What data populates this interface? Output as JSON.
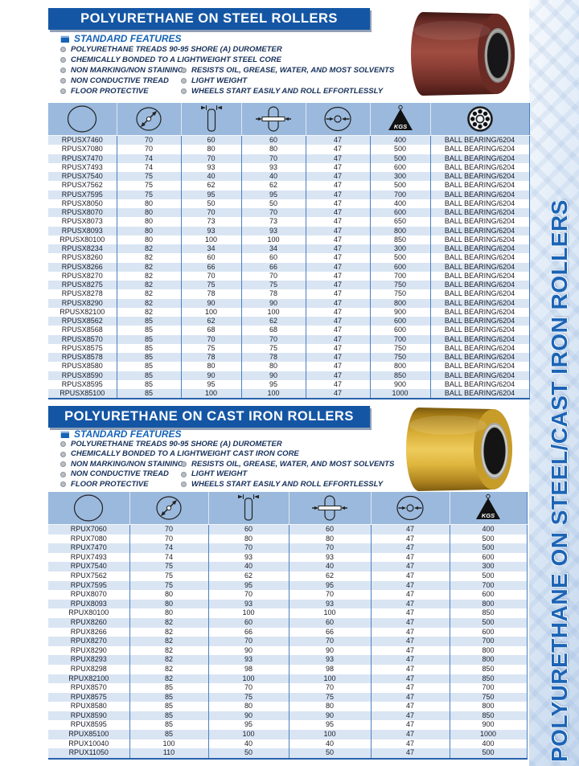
{
  "sidebar": {
    "vertical_title": "POLYURETHANE ON STEEL/CAST IRON ROLLERS"
  },
  "kgs_label": "KGS",
  "column_icons": [
    "part-number",
    "wheel-diameter",
    "tread-width",
    "hub-length",
    "bore-diameter",
    "load-capacity-kgs",
    "bearing-type"
  ],
  "sections": [
    {
      "banner": "POLYURETHANE ON STEEL ROLLERS",
      "features_title": "STANDARD FEATURES",
      "features_full": [
        "POLYURETHANE TREADS 90-95 SHORE (A) DUROMETER",
        "CHEMICALLY BONDED TO A LIGHTWEIGHT STEEL CORE"
      ],
      "features_left": [
        "NON MARKING/NON STAINING",
        "NON CONDUCTIVE TREAD",
        "FLOOR PROTECTIVE"
      ],
      "features_right": [
        "RESISTS OIL, GREASE, WATER, AND MOST SOLVENTS",
        "LIGHT WEIGHT",
        "WHEELS START EASILY AND ROLL EFFORTLESSLY"
      ],
      "product_image": "maroon-polyurethane-roller-steel-core",
      "rows": [
        [
          "RPUSX7460",
          "70",
          "60",
          "60",
          "47",
          "400",
          "BALL BEARING/6204"
        ],
        [
          "RPUSX7080",
          "70",
          "80",
          "80",
          "47",
          "500",
          "BALL BEARING/6204"
        ],
        [
          "RPUSX7470",
          "74",
          "70",
          "70",
          "47",
          "500",
          "BALL BEARING/6204"
        ],
        [
          "RPUSX7493",
          "74",
          "93",
          "93",
          "47",
          "600",
          "BALL BEARING/6204"
        ],
        [
          "RPUSX7540",
          "75",
          "40",
          "40",
          "47",
          "300",
          "BALL BEARING/6204"
        ],
        [
          "RPUSX7562",
          "75",
          "62",
          "62",
          "47",
          "500",
          "BALL BEARING/6204"
        ],
        [
          "RPUSX7595",
          "75",
          "95",
          "95",
          "47",
          "700",
          "BALL BEARING/6204"
        ],
        [
          "RPUSX8050",
          "80",
          "50",
          "50",
          "47",
          "400",
          "BALL BEARING/6204"
        ],
        [
          "RPUSX8070",
          "80",
          "70",
          "70",
          "47",
          "600",
          "BALL BEARING/6204"
        ],
        [
          "RPUSX8073",
          "80",
          "73",
          "73",
          "47",
          "650",
          "BALL BEARING/6204"
        ],
        [
          "RPUSX8093",
          "80",
          "93",
          "93",
          "47",
          "800",
          "BALL BEARING/6204"
        ],
        [
          "RPUSX80100",
          "80",
          "100",
          "100",
          "47",
          "850",
          "BALL BEARING/6204"
        ],
        [
          "RPUSX8234",
          "82",
          "34",
          "34",
          "47",
          "300",
          "BALL BEARING/6204"
        ],
        [
          "RPUSX8260",
          "82",
          "60",
          "60",
          "47",
          "500",
          "BALL BEARING/6204"
        ],
        [
          "RPUSX8266",
          "82",
          "66",
          "66",
          "47",
          "600",
          "BALL BEARING/6204"
        ],
        [
          "RPUSX8270",
          "82",
          "70",
          "70",
          "47",
          "700",
          "BALL BEARING/6204"
        ],
        [
          "RPUSX8275",
          "82",
          "75",
          "75",
          "47",
          "750",
          "BALL BEARING/6204"
        ],
        [
          "RPUSX8278",
          "82",
          "78",
          "78",
          "47",
          "750",
          "BALL BEARING/6204"
        ],
        [
          "RPUSX8290",
          "82",
          "90",
          "90",
          "47",
          "800",
          "BALL BEARING/6204"
        ],
        [
          "RPUSX82100",
          "82",
          "100",
          "100",
          "47",
          "900",
          "BALL BEARING/6204"
        ],
        [
          "RPUSX8562",
          "85",
          "62",
          "62",
          "47",
          "600",
          "BALL BEARING/6204"
        ],
        [
          "RPUSX8568",
          "85",
          "68",
          "68",
          "47",
          "600",
          "BALL BEARING/6204"
        ],
        [
          "RPUSX8570",
          "85",
          "70",
          "70",
          "47",
          "700",
          "BALL BEARING/6204"
        ],
        [
          "RPUSX8575",
          "85",
          "75",
          "75",
          "47",
          "750",
          "BALL BEARING/6204"
        ],
        [
          "RPUSX8578",
          "85",
          "78",
          "78",
          "47",
          "750",
          "BALL BEARING/6204"
        ],
        [
          "RPUSX8580",
          "85",
          "80",
          "80",
          "47",
          "800",
          "BALL BEARING/6204"
        ],
        [
          "RPUSX8590",
          "85",
          "90",
          "90",
          "47",
          "850",
          "BALL BEARING/6204"
        ],
        [
          "RPUSX8595",
          "85",
          "95",
          "95",
          "47",
          "900",
          "BALL BEARING/6204"
        ],
        [
          "RPUSX85100",
          "85",
          "100",
          "100",
          "47",
          "1000",
          "BALL BEARING/6204"
        ]
      ]
    },
    {
      "banner": "POLYURETHANE ON CAST IRON ROLLERS",
      "features_title": "STANDARD FEATURES",
      "features_full": [
        "POLYURETHANE TREADS 90-95 SHORE (A) DUROMETER",
        "CHEMICALLY BONDED TO A LIGHTWEIGHT CAST IRON CORE"
      ],
      "features_left": [
        "NON MARKING/NON STAINING",
        "NON CONDUCTIVE TREAD",
        "FLOOR PROTECTIVE"
      ],
      "features_right": [
        "RESISTS OIL, GREASE, WATER, AND MOST SOLVENTS",
        "LIGHT WEIGHT",
        "WHEELS START EASILY AND ROLL EFFORTLESSLY"
      ],
      "product_image": "yellow-polyurethane-roller-cast-iron-core",
      "rows": [
        [
          "RPUX7060",
          "70",
          "60",
          "60",
          "47",
          "400"
        ],
        [
          "RPUX7080",
          "70",
          "80",
          "80",
          "47",
          "500"
        ],
        [
          "RPUX7470",
          "74",
          "70",
          "70",
          "47",
          "500"
        ],
        [
          "RPUX7493",
          "74",
          "93",
          "93",
          "47",
          "600"
        ],
        [
          "RPUX7540",
          "75",
          "40",
          "40",
          "47",
          "300"
        ],
        [
          "RPUX7562",
          "75",
          "62",
          "62",
          "47",
          "500"
        ],
        [
          "RPUX7595",
          "75",
          "95",
          "95",
          "47",
          "700"
        ],
        [
          "RPUX8070",
          "80",
          "70",
          "70",
          "47",
          "600"
        ],
        [
          "RPUX8093",
          "80",
          "93",
          "93",
          "47",
          "800"
        ],
        [
          "RPUX80100",
          "80",
          "100",
          "100",
          "47",
          "850"
        ],
        [
          "RPUX8260",
          "82",
          "60",
          "60",
          "47",
          "500"
        ],
        [
          "RPUX8266",
          "82",
          "66",
          "66",
          "47",
          "600"
        ],
        [
          "RPUX8270",
          "82",
          "70",
          "70",
          "47",
          "700"
        ],
        [
          "RPUX8290",
          "82",
          "90",
          "90",
          "47",
          "800"
        ],
        [
          "RPUX8293",
          "82",
          "93",
          "93",
          "47",
          "800"
        ],
        [
          "RPUX8298",
          "82",
          "98",
          "98",
          "47",
          "850"
        ],
        [
          "RPUX82100",
          "82",
          "100",
          "100",
          "47",
          "850"
        ],
        [
          "RPUX8570",
          "85",
          "70",
          "70",
          "47",
          "700"
        ],
        [
          "RPUX8575",
          "85",
          "75",
          "75",
          "47",
          "750"
        ],
        [
          "RPUX8580",
          "85",
          "80",
          "80",
          "47",
          "800"
        ],
        [
          "RPUX8590",
          "85",
          "90",
          "90",
          "47",
          "850"
        ],
        [
          "RPUX8595",
          "85",
          "95",
          "95",
          "47",
          "900"
        ],
        [
          "RPUX85100",
          "85",
          "100",
          "100",
          "47",
          "1000"
        ],
        [
          "RPUX10040",
          "100",
          "40",
          "40",
          "47",
          "400"
        ],
        [
          "RPUX11050",
          "110",
          "50",
          "50",
          "47",
          "500"
        ]
      ]
    }
  ],
  "colors": {
    "banner_blue": "#1456a4",
    "table_header_blue": "#9ab9dd",
    "row_stripe_blue": "#d9e5f3",
    "feature_text_navy": "#16305a",
    "features_title_blue": "#1563b8",
    "sidebar_text_blue": "#1b64b6"
  }
}
